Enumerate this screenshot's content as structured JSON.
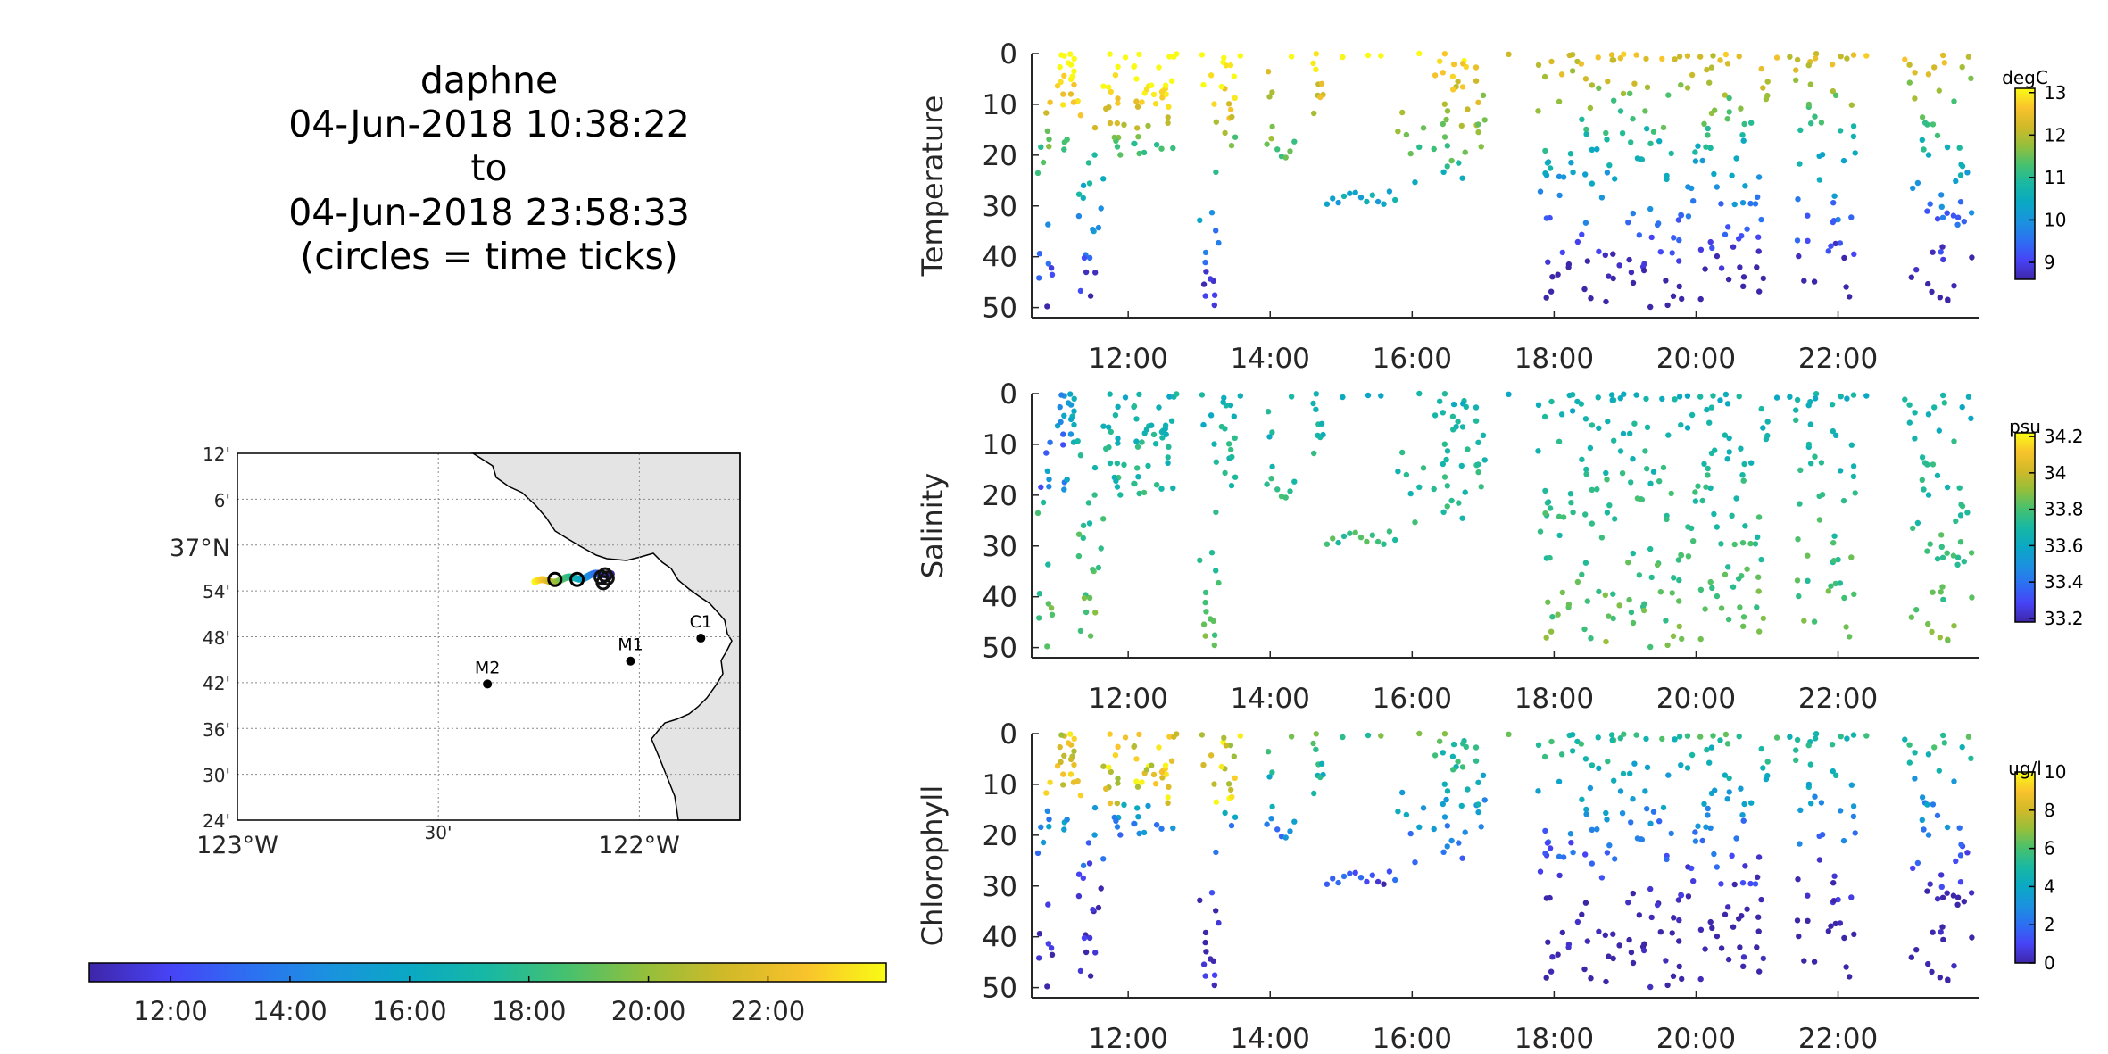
{
  "title": {
    "lines": [
      "daphne",
      "04-Jun-2018 10:38:22",
      "to",
      "04-Jun-2018 23:58:33",
      "(circles = time ticks)"
    ]
  },
  "colors": {
    "colormap": [
      "#3e26a8",
      "#4743f6",
      "#2d6ff2",
      "#1b92df",
      "#0aa8c4",
      "#18b8a4",
      "#47c16e",
      "#95bf3b",
      "#d1b928",
      "#f9c32c",
      "#f9fb15"
    ],
    "land": "#e4e4e4",
    "grid": "#8a8a8a"
  },
  "map": {
    "lat_labels": [
      "12'",
      "6'",
      "37°N",
      "54'",
      "48'",
      "42'",
      "36'",
      "30'",
      "24'"
    ],
    "lon_labels": [
      "123°W",
      "30'",
      "122°W"
    ],
    "lat_range": [
      36.4,
      37.2
    ],
    "lon_range": [
      -123.0,
      -121.75
    ],
    "stations": [
      {
        "name": "M2",
        "lat": 36.697,
        "lon": -122.378
      },
      {
        "name": "M1",
        "lat": 36.747,
        "lon": -122.022
      },
      {
        "name": "C1",
        "lat": 36.797,
        "lon": -121.847
      }
    ],
    "track": {
      "lat": [
        36.92,
        36.94
      ],
      "lon": [
        -122.26,
        -122.07
      ]
    }
  },
  "time_colorbar": {
    "ticks": [
      "12:00",
      "14:00",
      "16:00",
      "18:00",
      "20:00",
      "22:00"
    ]
  },
  "chart_data": [
    {
      "type": "scatter",
      "ylabel": "Temperature",
      "colorbar_unit": "degC",
      "colorbar_ticks": [
        "13",
        "12",
        "11",
        "10",
        "9"
      ],
      "clim": [
        8.6,
        13.1
      ],
      "xlim": [
        10.64,
        23.98
      ],
      "ylim": [
        52,
        0
      ],
      "yticks": [
        "0",
        "10",
        "20",
        "30",
        "40",
        "50"
      ],
      "xticks": [
        "12:00",
        "14:00",
        "16:00",
        "18:00",
        "20:00",
        "22:00"
      ]
    },
    {
      "type": "scatter",
      "ylabel": "Salinity",
      "colorbar_unit": "psu",
      "colorbar_ticks": [
        "34.2",
        "34",
        "33.8",
        "33.6",
        "33.4",
        "33.2"
      ],
      "clim": [
        33.18,
        34.22
      ],
      "xlim": [
        10.64,
        23.98
      ],
      "ylim": [
        52,
        0
      ],
      "yticks": [
        "0",
        "10",
        "20",
        "30",
        "40",
        "50"
      ],
      "xticks": [
        "12:00",
        "14:00",
        "16:00",
        "18:00",
        "20:00",
        "22:00"
      ]
    },
    {
      "type": "scatter",
      "ylabel": "Chlorophyll",
      "colorbar_unit": "ug/l",
      "colorbar_ticks": [
        "10",
        "8",
        "6",
        "4",
        "2",
        "0"
      ],
      "clim": [
        0,
        10
      ],
      "xlim": [
        10.64,
        23.98
      ],
      "ylim": [
        52,
        0
      ],
      "yticks": [
        "0",
        "10",
        "20",
        "30",
        "40",
        "50"
      ],
      "xticks": [
        "12:00",
        "14:00",
        "16:00",
        "18:00",
        "20:00",
        "22:00"
      ]
    }
  ]
}
